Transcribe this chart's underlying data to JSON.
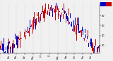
{
  "plot_bg_color": "#f0f0f0",
  "legend_blue_color": "#0000cc",
  "legend_red_color": "#cc0000",
  "grid_color": "#bbbbbb",
  "num_days": 365,
  "seed": 42,
  "ylim": [
    5,
    105
  ],
  "yticks": [
    20,
    40,
    60,
    80,
    100
  ],
  "bar_width": 1.0,
  "month_starts": [
    0,
    31,
    59,
    90,
    120,
    151,
    181,
    212,
    243,
    273,
    304,
    334
  ],
  "month_labels": [
    "Jan",
    "Feb",
    "Mar",
    "Apr",
    "May",
    "Jun",
    "Jul",
    "Aug",
    "Sep",
    "Oct",
    "Nov",
    "Dec"
  ]
}
